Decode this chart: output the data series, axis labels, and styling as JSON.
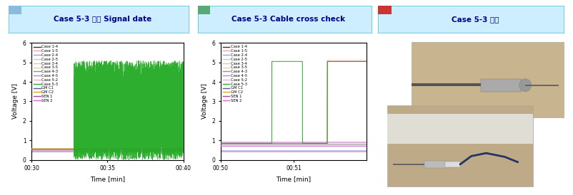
{
  "title1": "Case 5-3 파손 Signal date",
  "title2": "Case 5-3 Cable cross check",
  "title3": "Case 5-3 외형",
  "xlabel": "Time [min]",
  "ylabel": "Voltage [V]",
  "ylim": [
    0,
    6
  ],
  "legend_entries": [
    {
      "label": "Case 1-4",
      "color": "#333333"
    },
    {
      "label": "Case 1-5",
      "color": "#ff9999"
    },
    {
      "label": "Case 2-4",
      "color": "#9999ff"
    },
    {
      "label": "Case 2-5",
      "color": "#aaddaa"
    },
    {
      "label": "Case 3-4",
      "color": "#ffbbbb"
    },
    {
      "label": "Case 3-5",
      "color": "#dddd88"
    },
    {
      "label": "Case 4-3",
      "color": "#8888dd"
    },
    {
      "label": "Case 4-5",
      "color": "#bb88bb"
    },
    {
      "label": "Case 5-2",
      "color": "#ffaacc"
    },
    {
      "label": "Case 5-3",
      "color": "#22aa22"
    },
    {
      "label": "GM C1",
      "color": "#555599"
    },
    {
      "label": "GM C2",
      "color": "#ddaa00"
    },
    {
      "label": "SEN 1",
      "color": "#aa44aa"
    },
    {
      "label": "SEN 2",
      "color": "#cc66cc"
    }
  ],
  "title_box_color": "#cceeff",
  "title_border_color": "#55ccdd",
  "title_text_color": "#000088",
  "title_sq_color1": "#88bbdd",
  "title_sq_color2": "#55aa77",
  "title_sq_color3": "#cc3333",
  "background_color": "#ffffff",
  "plot1_xticks": [
    "00:30",
    "00:35",
    "00:40"
  ],
  "plot2_xticks": [
    "00:50",
    "00:51"
  ],
  "photo_bg_top": "#c8b898",
  "photo_bg_bot": "#b8a888",
  "photo_bg_white": "#e8e8e8"
}
